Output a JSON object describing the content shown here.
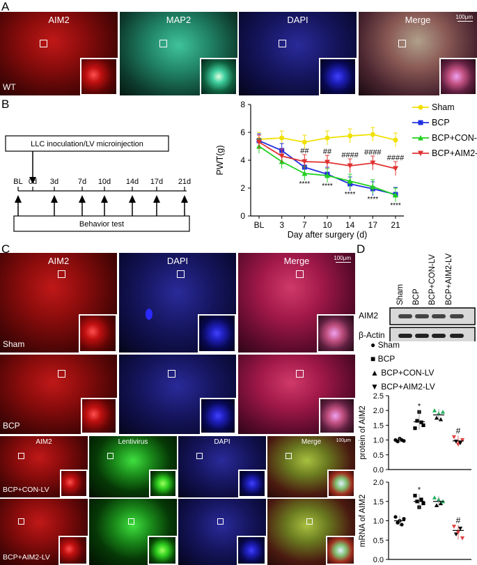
{
  "panels": {
    "A": {
      "label": "A",
      "channels": [
        "AIM2",
        "MAP2",
        "DAPI",
        "Merge"
      ],
      "condition": "WT",
      "scale": "100μm"
    },
    "B": {
      "label": "B"
    },
    "C": {
      "label": "C",
      "channels_top": [
        "AIM2",
        "DAPI",
        "Merge"
      ],
      "conditions_top": [
        "Sham",
        "BCP"
      ],
      "scale": "100μm",
      "channels_bottom": [
        "AIM2",
        "Lentivirus",
        "DAPI",
        "Merge"
      ],
      "conditions_bottom": [
        "BCP+CON-LV",
        "BCP+AIM2-LV"
      ]
    },
    "D": {
      "label": "D"
    }
  },
  "timeline": {
    "procedure": "LLC inoculation/LV microinjection",
    "ticks": [
      "BL",
      "0d",
      "3d",
      "7d",
      "10d",
      "14d",
      "17d",
      "21d"
    ],
    "behavior": "Behavior test"
  },
  "chart_data": [
    {
      "type": "line",
      "xlabel": "Day after surgery (d)",
      "ylabel": "PWT(g)",
      "categories": [
        "BL",
        "3",
        "7",
        "10",
        "14",
        "17",
        "21"
      ],
      "ylim": [
        0,
        8
      ],
      "yticks": [
        0,
        2,
        4,
        6,
        8
      ],
      "legend": "top-right",
      "series": [
        {
          "name": "Sham",
          "color": "#f0e000",
          "values": [
            5.5,
            5.6,
            5.3,
            5.6,
            5.75,
            5.85,
            5.45
          ]
        },
        {
          "name": "BCP",
          "color": "#2030e0",
          "values": [
            5.4,
            4.7,
            3.5,
            3.0,
            2.3,
            1.95,
            1.55
          ]
        },
        {
          "name": "BCP+CON-LV",
          "color": "#20d020",
          "values": [
            5.0,
            3.9,
            3.05,
            2.9,
            2.5,
            2.1,
            1.5
          ]
        },
        {
          "name": "BCP+AIM2-LV",
          "color": "#e03030",
          "values": [
            5.3,
            4.3,
            3.9,
            3.85,
            3.6,
            3.8,
            3.4
          ]
        }
      ],
      "annotations": [
        {
          "x": "7",
          "text": "##"
        },
        {
          "x": "10",
          "text": "##"
        },
        {
          "x": "14",
          "text": "####"
        },
        {
          "x": "17",
          "text": "####"
        },
        {
          "x": "21",
          "text": "####"
        },
        {
          "x": "7",
          "text": "****"
        },
        {
          "x": "10",
          "text": "****"
        },
        {
          "x": "14",
          "text": "****"
        },
        {
          "x": "17",
          "text": "****"
        },
        {
          "x": "21",
          "text": "****"
        }
      ]
    },
    {
      "type": "scatter",
      "ylabel": "protein of AIM2",
      "ylim": [
        0,
        2.5
      ],
      "yticks": [
        "0.0",
        "0.5",
        "1.0",
        "1.5",
        "2.0",
        "2.5"
      ],
      "groups": [
        {
          "name": "Sham",
          "mean": 1.0,
          "points": [
            1.0,
            0.95,
            1.05,
            1.0,
            0.97
          ],
          "mark": ""
        },
        {
          "name": "BCP",
          "mean": 1.62,
          "points": [
            1.4,
            1.65,
            1.95,
            1.6,
            1.5
          ],
          "mark": "*"
        },
        {
          "name": "BCP+CON-LV",
          "mean": 1.85,
          "points": [
            2.0,
            1.75,
            1.9,
            1.7,
            1.95
          ],
          "mark": ""
        },
        {
          "name": "BCP+AIM2-LV",
          "mean": 0.97,
          "points": [
            1.1,
            0.95,
            0.85,
            0.9,
            1.0
          ],
          "mark": "#"
        }
      ]
    },
    {
      "type": "scatter",
      "ylabel": "mRNA of AIM2",
      "ylim": [
        0,
        2.0
      ],
      "yticks": [
        "0.0",
        "0.5",
        "1.0",
        "1.5",
        "2.0"
      ],
      "groups": [
        {
          "name": "Sham",
          "mean": 1.0,
          "points": [
            1.1,
            0.95,
            1.0,
            0.9,
            1.05
          ],
          "mark": ""
        },
        {
          "name": "BCP",
          "mean": 1.5,
          "points": [
            1.65,
            1.5,
            1.35,
            1.55,
            1.45
          ],
          "mark": "*"
        },
        {
          "name": "BCP+CON-LV",
          "mean": 1.5,
          "points": [
            1.6,
            1.4,
            1.55,
            1.45,
            1.5
          ],
          "mark": ""
        },
        {
          "name": "BCP+AIM2-LV",
          "mean": 0.75,
          "points": [
            0.85,
            0.65,
            0.7,
            0.8,
            0.55
          ],
          "mark": "#"
        }
      ]
    }
  ],
  "western": {
    "lanes": [
      "Sham",
      "BCP",
      "BCP+CON-LV",
      "BCP+AIM2-LV"
    ],
    "rows": [
      "AIM2",
      "β-Actin"
    ]
  },
  "d_legend": [
    {
      "name": "Sham",
      "symbol": "●"
    },
    {
      "name": "BCP",
      "symbol": "■"
    },
    {
      "name": "BCP+CON-LV",
      "symbol": "▲"
    },
    {
      "name": "BCP+AIM2-LV",
      "symbol": "▼"
    }
  ]
}
